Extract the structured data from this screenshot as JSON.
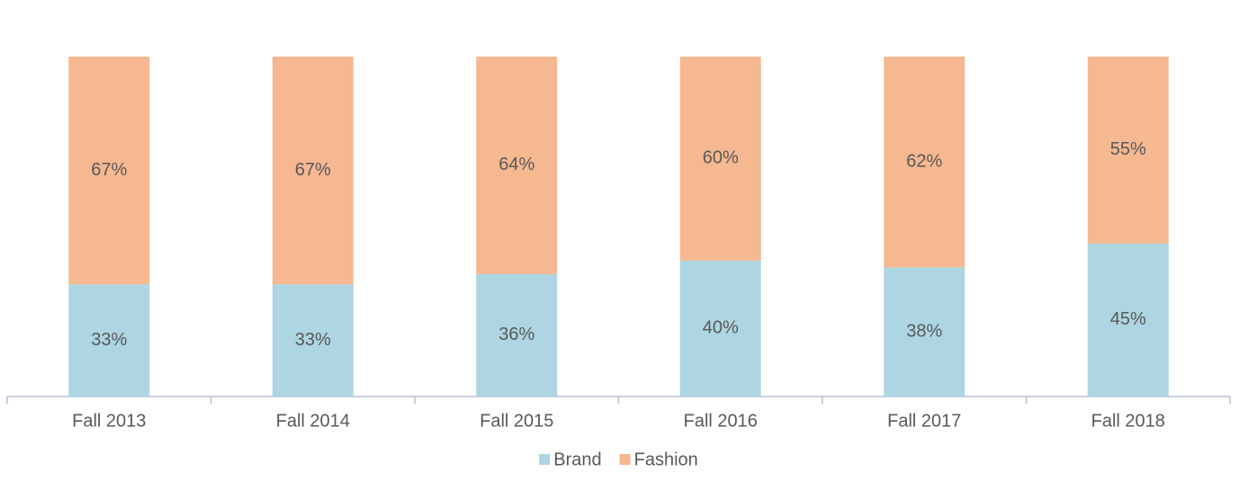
{
  "chart_data": {
    "type": "bar",
    "stacked": true,
    "legend": "bottom",
    "categories": [
      "Fall 2013",
      "Fall 2014",
      "Fall 2015",
      "Fall 2016",
      "Fall 2017",
      "Fall 2018"
    ],
    "series": [
      {
        "name": "Brand",
        "color": "#add5e2",
        "values": [
          33,
          33,
          36,
          40,
          38,
          45
        ],
        "value_labels": [
          "33%",
          "33%",
          "36%",
          "40%",
          "38%",
          "45%"
        ]
      },
      {
        "name": "Fashion",
        "color": "#f5b891",
        "values": [
          67,
          67,
          64,
          60,
          62,
          55
        ],
        "value_labels": [
          "67%",
          "67%",
          "64%",
          "60%",
          "62%",
          "55%"
        ]
      }
    ]
  }
}
